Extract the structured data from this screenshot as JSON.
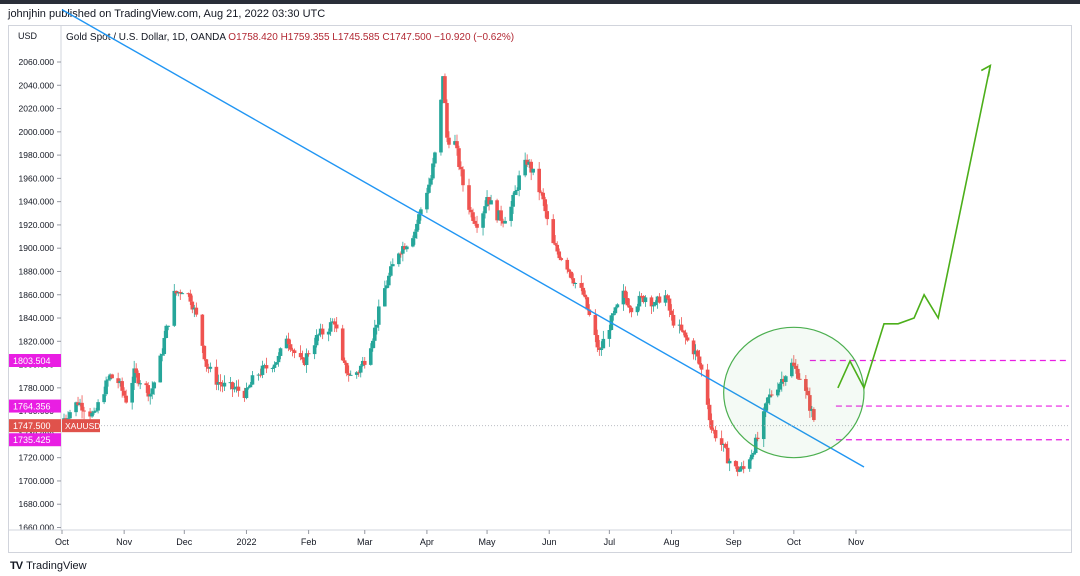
{
  "header": {
    "published": "johnjhin published on TradingView.com, Aug 21, 2022 03:30 UTC"
  },
  "legend": {
    "symbol": "Gold Spot / U.S. Dollar, 1D, OANDA",
    "open": "O1758.420",
    "high": "H1759.355",
    "low": "L1745.585",
    "close": "C1747.500",
    "change": "−10.920 (−0.62%)"
  },
  "footer": {
    "brand": "TradingView",
    "logo": "TV"
  },
  "colors": {
    "up": "#26a69a",
    "down": "#ef5350",
    "trend": "#2196f3",
    "forecast": "#4caf1a",
    "level": "#e91ee3",
    "price_tag": "#e0524b",
    "circle": "#4caf50"
  },
  "chart_data": {
    "type": "candlestick",
    "currency": "USD",
    "ylim": [
      1660,
      2080
    ],
    "yticks": [
      "1660.000",
      "1680.000",
      "1700.000",
      "1720.000",
      "1740.000",
      "1760.000",
      "1780.000",
      "1800.000",
      "1820.000",
      "1840.000",
      "1860.000",
      "1880.000",
      "1900.000",
      "1920.000",
      "1940.000",
      "1960.000",
      "1980.000",
      "2000.000",
      "2020.000",
      "2040.000",
      "2060.000"
    ],
    "xticks": [
      "Oct",
      "Nov",
      "Dec",
      "2022",
      "Feb",
      "Mar",
      "Apr",
      "May",
      "Jun",
      "Jul",
      "Aug",
      "Sep",
      "Oct",
      "Nov"
    ],
    "last_price": {
      "value": 1747.5,
      "label": "1747.500",
      "tag": "XAUUSD"
    },
    "levels": [
      {
        "value": 1803.504,
        "label": "1803.504"
      },
      {
        "value": 1764.356,
        "label": "1764.356"
      },
      {
        "value": 1735.425,
        "label": "1735.425"
      }
    ],
    "close_path": [
      [
        0,
        1752
      ],
      [
        4,
        1760
      ],
      [
        8,
        1768
      ],
      [
        12,
        1762
      ],
      [
        16,
        1755
      ],
      [
        20,
        1775
      ],
      [
        24,
        1790
      ],
      [
        28,
        1785
      ],
      [
        32,
        1770
      ],
      [
        36,
        1792
      ],
      [
        40,
        1785
      ],
      [
        44,
        1775
      ],
      [
        48,
        1795
      ],
      [
        52,
        1830
      ],
      [
        56,
        1860
      ],
      [
        60,
        1865
      ],
      [
        64,
        1858
      ],
      [
        68,
        1835
      ],
      [
        72,
        1800
      ],
      [
        76,
        1788
      ],
      [
        80,
        1782
      ],
      [
        84,
        1780
      ],
      [
        88,
        1778
      ],
      [
        92,
        1775
      ],
      [
        96,
        1790
      ],
      [
        100,
        1795
      ],
      [
        104,
        1800
      ],
      [
        108,
        1805
      ],
      [
        112,
        1825
      ],
      [
        116,
        1810
      ],
      [
        120,
        1800
      ],
      [
        124,
        1815
      ],
      [
        128,
        1825
      ],
      [
        132,
        1830
      ],
      [
        136,
        1838
      ],
      [
        140,
        1800
      ],
      [
        144,
        1790
      ],
      [
        148,
        1795
      ],
      [
        152,
        1808
      ],
      [
        156,
        1830
      ],
      [
        160,
        1860
      ],
      [
        164,
        1880
      ],
      [
        168,
        1898
      ],
      [
        172,
        1905
      ],
      [
        176,
        1915
      ],
      [
        180,
        1940
      ],
      [
        184,
        1960
      ],
      [
        188,
        2000
      ],
      [
        190,
        2050
      ],
      [
        192,
        1995
      ],
      [
        196,
        1990
      ],
      [
        200,
        1955
      ],
      [
        204,
        1930
      ],
      [
        208,
        1920
      ],
      [
        212,
        1945
      ],
      [
        216,
        1930
      ],
      [
        220,
        1925
      ],
      [
        224,
        1935
      ],
      [
        228,
        1960
      ],
      [
        232,
        1975
      ],
      [
        236,
        1960
      ],
      [
        240,
        1940
      ],
      [
        244,
        1905
      ],
      [
        248,
        1895
      ],
      [
        252,
        1885
      ],
      [
        256,
        1870
      ],
      [
        260,
        1860
      ],
      [
        264,
        1835
      ],
      [
        268,
        1810
      ],
      [
        272,
        1830
      ],
      [
        276,
        1845
      ],
      [
        280,
        1860
      ],
      [
        284,
        1850
      ],
      [
        288,
        1855
      ],
      [
        292,
        1860
      ],
      [
        296,
        1850
      ],
      [
        300,
        1865
      ],
      [
        304,
        1840
      ],
      [
        308,
        1830
      ],
      [
        312,
        1820
      ],
      [
        316,
        1810
      ],
      [
        320,
        1790
      ],
      [
        324,
        1745
      ],
      [
        328,
        1735
      ],
      [
        332,
        1720
      ],
      [
        336,
        1710
      ],
      [
        340,
        1710
      ],
      [
        344,
        1725
      ],
      [
        348,
        1740
      ],
      [
        352,
        1770
      ],
      [
        356,
        1780
      ],
      [
        360,
        1790
      ],
      [
        364,
        1800
      ],
      [
        368,
        1790
      ],
      [
        372,
        1770
      ],
      [
        376,
        1747
      ]
    ],
    "trendline": [
      [
        0,
        2105
      ],
      [
        400,
        1712
      ]
    ],
    "forecast_path": [
      [
        387,
        1780
      ],
      [
        393,
        1803
      ],
      [
        400,
        1780
      ],
      [
        410,
        1835
      ],
      [
        417,
        1835
      ],
      [
        425,
        1840
      ],
      [
        430,
        1860
      ],
      [
        437,
        1840
      ],
      [
        463,
        2057
      ]
    ],
    "circle": {
      "cx_day": 365,
      "cy_value": 1776,
      "rx_days": 35,
      "ry_value": 56
    }
  }
}
